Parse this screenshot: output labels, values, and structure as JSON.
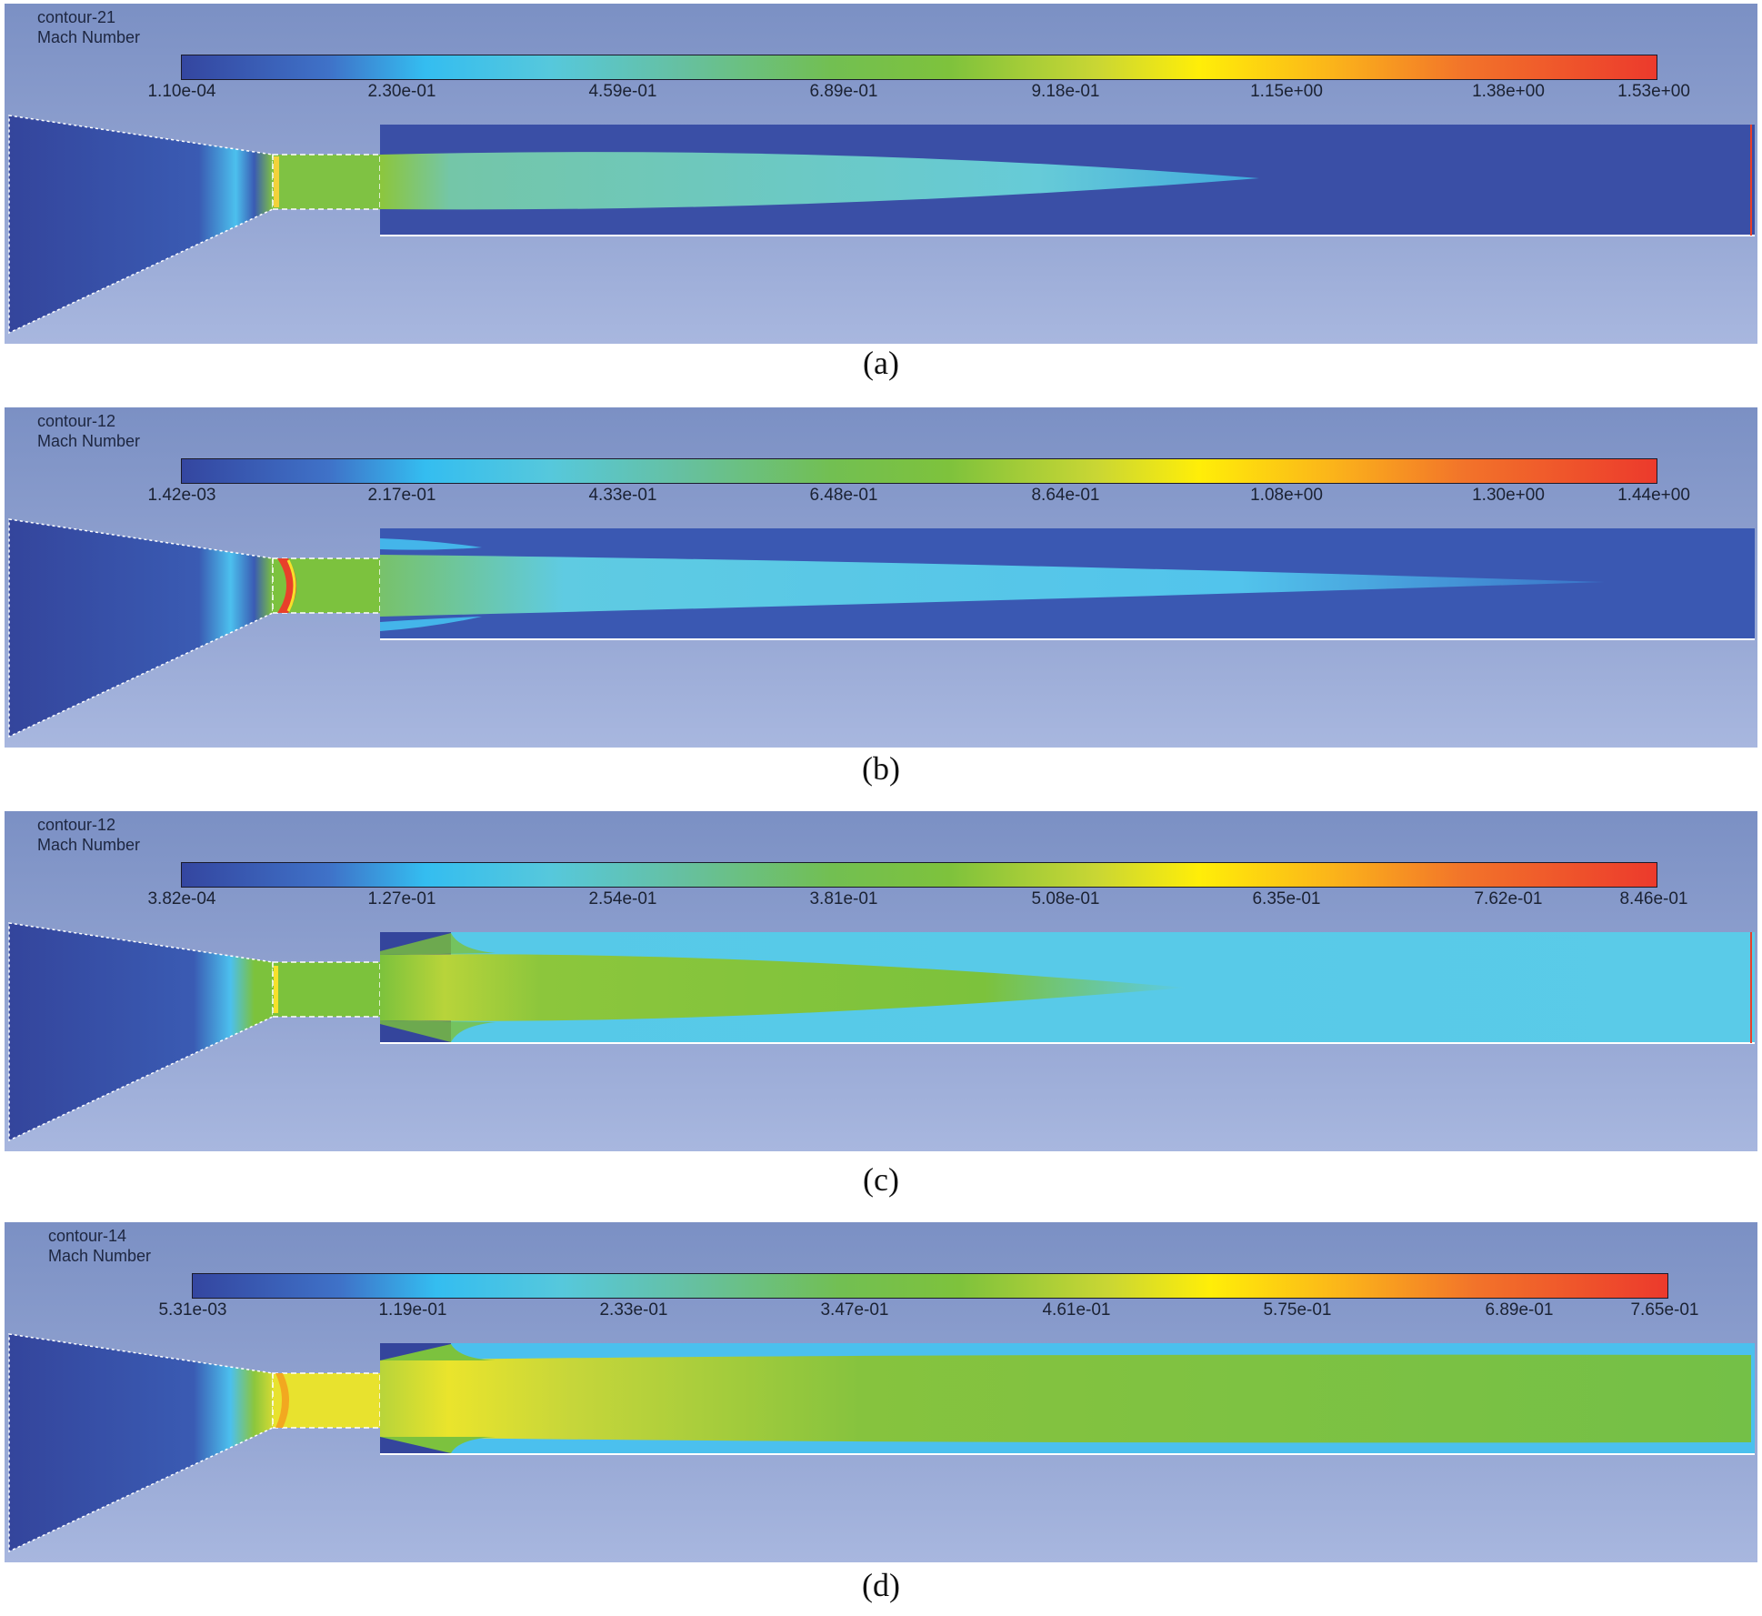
{
  "panels": [
    {
      "id": "a",
      "caption": "(a)",
      "contour_name": "contour-21",
      "variable": "Mach Number",
      "ticks": [
        "1.10e-04",
        "2.30e-01",
        "4.59e-01",
        "6.89e-01",
        "9.18e-01",
        "1.15e+00",
        "1.38e+00",
        "1.53e+00"
      ],
      "colors": {
        "nozzle": "#34459c",
        "jet": "#72c8b2",
        "tube": "#3a4fa6",
        "throat": "#8cc63c",
        "shock": "#f2d23a",
        "edge": "#3fa9dd"
      }
    },
    {
      "id": "b",
      "caption": "(b)",
      "contour_name": "contour-12",
      "variable": "Mach Number",
      "ticks": [
        "1.42e-03",
        "2.17e-01",
        "4.33e-01",
        "6.48e-01",
        "8.64e-01",
        "1.08e+00",
        "1.30e+00",
        "1.44e+00"
      ],
      "colors": {
        "nozzle": "#34459c",
        "jet": "#5fcbe2",
        "tube": "#3a58b2",
        "throat": "#7cc23e",
        "shock": "#e8402a",
        "edge": "#44b5ea"
      }
    },
    {
      "id": "c",
      "caption": "(c)",
      "contour_name": "contour-12",
      "variable": "Mach Number",
      "ticks": [
        "3.82e-04",
        "1.27e-01",
        "2.54e-01",
        "3.81e-01",
        "5.08e-01",
        "6.35e-01",
        "7.62e-01",
        "8.46e-01"
      ],
      "colors": {
        "nozzle": "#34459c",
        "jet": "#7cc23c",
        "tube": "#56c9e8",
        "throat": "#7cc23c",
        "shock": "#f6e12a",
        "edge": "#49bff0"
      }
    },
    {
      "id": "d",
      "caption": "(d)",
      "contour_name": "contour-14",
      "variable": "Mach Number",
      "ticks": [
        "5.31e-03",
        "1.19e-01",
        "2.33e-01",
        "3.47e-01",
        "4.61e-01",
        "5.75e-01",
        "6.89e-01",
        "7.65e-01"
      ],
      "colors": {
        "nozzle": "#34459c",
        "jet": "#78c03e",
        "tube": "#7cc23e",
        "throat": "#e8e22e",
        "shock": "#f6e82a",
        "edge": "#4bc0ee"
      }
    }
  ]
}
